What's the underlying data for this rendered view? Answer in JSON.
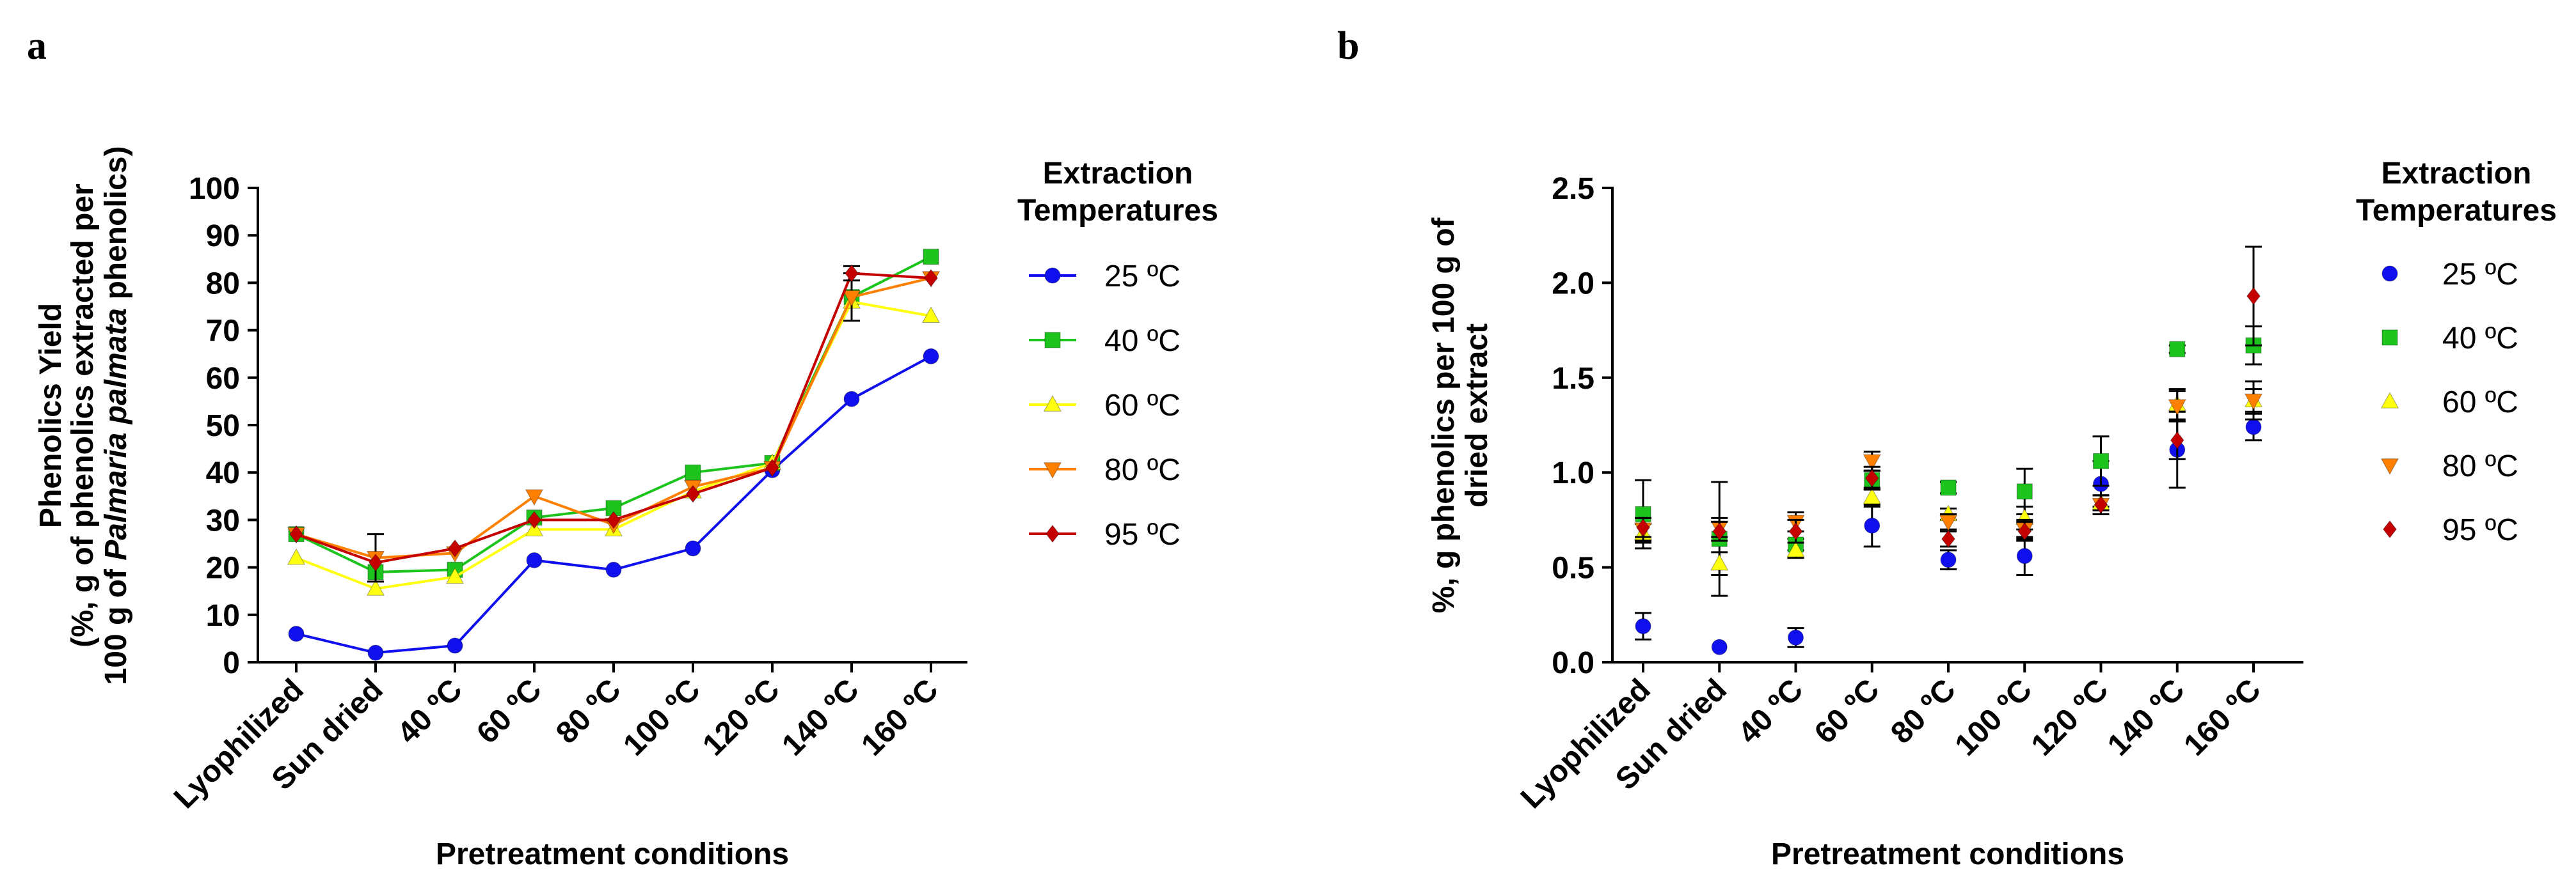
{
  "panel_labels": [
    "a",
    "b"
  ],
  "chart_data": [
    {
      "type": "line",
      "panel": "a",
      "categories": [
        "Lyophilized",
        "Sun dried",
        "40 ºC",
        "60 ºC",
        "80 ºC",
        "100 ºC",
        "120 ºC",
        "140 ºC",
        "160 ºC"
      ],
      "xlabel": "Pretreatment conditions",
      "ylabel_lines": [
        "Phenolics Yield",
        "(%, g of phenolics extracted per",
        "100 g of Palmaria palmata phenolics)"
      ],
      "ylabel_italic": "Palmaria palmata",
      "ylim": [
        0,
        100
      ],
      "yticks": [
        0,
        10,
        20,
        30,
        40,
        50,
        60,
        70,
        80,
        90,
        100
      ],
      "legend_title": [
        "Extraction",
        "Temperatures"
      ],
      "series": [
        {
          "name": "25 ºC",
          "color": "#1010ee",
          "marker": "circle",
          "values": [
            6,
            2,
            3.5,
            21.5,
            19.5,
            24,
            40.5,
            55.5,
            64.5
          ],
          "errors": [
            0,
            0,
            0,
            0,
            0,
            0,
            0,
            0,
            0
          ]
        },
        {
          "name": "40 ºC",
          "color": "#1ec41e",
          "marker": "square",
          "values": [
            27,
            19,
            19.5,
            30.5,
            32.5,
            40,
            42,
            77,
            85.5
          ],
          "errors": [
            0,
            0,
            0,
            0,
            0,
            0,
            0,
            0,
            0
          ]
        },
        {
          "name": "60 ºC",
          "color": "#ffff10",
          "marker": "triangle-up",
          "values": [
            22,
            15.5,
            18,
            28,
            28,
            36,
            42,
            76,
            73
          ],
          "errors": [
            0,
            0,
            0,
            0,
            0,
            0,
            0,
            0,
            0
          ]
        },
        {
          "name": "80 ºC",
          "color": "#ff8000",
          "marker": "triangle-down",
          "values": [
            27,
            22,
            23,
            35,
            29,
            37,
            41,
            77,
            81
          ],
          "errors": [
            0,
            5,
            0,
            0,
            0,
            0,
            0,
            5,
            0
          ]
        },
        {
          "name": "95 ºC",
          "color": "#c40000",
          "marker": "diamond",
          "values": [
            27,
            21,
            24,
            30,
            30,
            35.5,
            41,
            82,
            81
          ],
          "errors": [
            0,
            0,
            0,
            0,
            0,
            0,
            0,
            1.5,
            0
          ]
        }
      ]
    },
    {
      "type": "scatter",
      "panel": "b",
      "categories": [
        "Lyophilized",
        "Sun dried",
        "40 ºC",
        "60 ºC",
        "80 ºC",
        "100 ºC",
        "120 ºC",
        "140 ºC",
        "160 ºC"
      ],
      "xlabel": "Pretreatment conditions",
      "ylabel_lines": [
        "%, g phenolics per 100 g of",
        "dried extract"
      ],
      "ylim": [
        0,
        2.5
      ],
      "yticks": [
        "0.0",
        "0.5",
        "1.0",
        "1.5",
        "2.0",
        "2.5"
      ],
      "legend_title": [
        "Extraction",
        "Temperatures"
      ],
      "series": [
        {
          "name": "25 ºC",
          "color": "#1010ee",
          "marker": "circle",
          "values": [
            0.19,
            0.08,
            0.13,
            0.72,
            0.54,
            0.56,
            0.94,
            1.12,
            1.24
          ],
          "errors": [
            0.07,
            0,
            0.05,
            0.11,
            0.05,
            0.1,
            0.12,
            0.2,
            0.07
          ]
        },
        {
          "name": "40 ºC",
          "color": "#1ec41e",
          "marker": "square",
          "values": [
            0.78,
            0.65,
            0.62,
            0.96,
            0.92,
            0.9,
            1.06,
            1.65,
            1.67
          ],
          "errors": [
            0.18,
            0.3,
            0.03,
            0.05,
            0.03,
            0.12,
            0.13,
            0.02,
            0.1
          ]
        },
        {
          "name": "60 ºC",
          "color": "#ffff10",
          "marker": "triangle-up",
          "values": [
            0.68,
            0.52,
            0.59,
            0.87,
            0.78,
            0.76,
            0.84,
            1.36,
            1.38
          ],
          "errors": [
            0.05,
            0.06,
            0.04,
            0.05,
            0.03,
            0.06,
            0.04,
            0.08,
            0.1
          ]
        },
        {
          "name": "80 ºC",
          "color": "#ff8000",
          "marker": "triangle-down",
          "values": [
            0.7,
            0.71,
            0.74,
            1.06,
            0.74,
            0.7,
            0.83,
            1.35,
            1.38
          ],
          "errors": [
            0.06,
            0.05,
            0.05,
            0.05,
            0.04,
            0.05,
            0.05,
            0.08,
            0.06
          ]
        },
        {
          "name": "95 ºC",
          "color": "#c40000",
          "marker": "diamond",
          "values": [
            0.71,
            0.69,
            0.69,
            0.97,
            0.65,
            0.69,
            0.83,
            1.17,
            1.93
          ],
          "errors": [
            0.05,
            0.05,
            0.06,
            0.06,
            0.04,
            0.05,
            0.05,
            0.1,
            0.26
          ]
        }
      ]
    }
  ]
}
